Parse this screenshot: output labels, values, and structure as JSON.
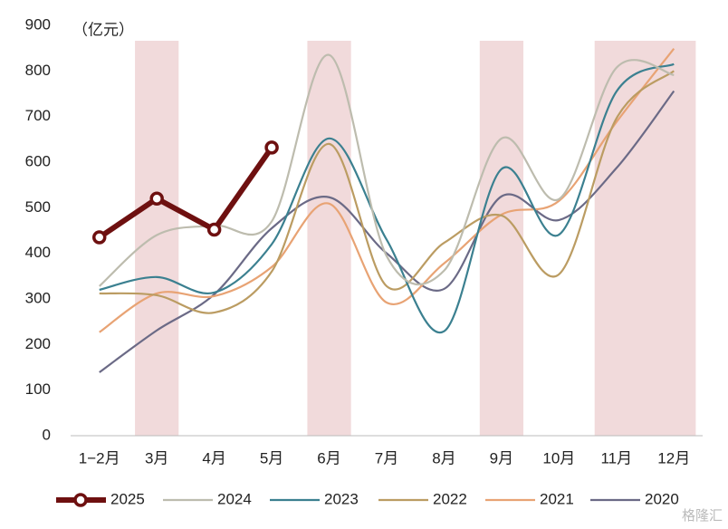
{
  "chart_data": {
    "type": "line",
    "unit_label": "（亿元）",
    "categories": [
      "1−2月",
      "3月",
      "4月",
      "5月",
      "6月",
      "7月",
      "8月",
      "9月",
      "10月",
      "11月",
      "12月"
    ],
    "series": [
      {
        "name": "2025",
        "color": "#6e1010",
        "values": [
          435,
          520,
          452,
          632,
          null,
          null,
          null,
          null,
          null,
          null,
          null
        ]
      },
      {
        "name": "2024",
        "color": "#bdbcae",
        "values": [
          328,
          440,
          461,
          470,
          835,
          394,
          362,
          652,
          519,
          807,
          791
        ]
      },
      {
        "name": "2023",
        "color": "#3b8090",
        "values": [
          320,
          348,
          314,
          420,
          652,
          430,
          229,
          585,
          441,
          755,
          815
        ]
      },
      {
        "name": "2022",
        "color": "#bb9c62",
        "values": [
          312,
          308,
          270,
          360,
          640,
          328,
          423,
          483,
          354,
          696,
          800
        ]
      },
      {
        "name": "2021",
        "color": "#e8a374",
        "values": [
          227,
          312,
          306,
          370,
          509,
          292,
          378,
          485,
          515,
          688,
          849
        ]
      },
      {
        "name": "2020",
        "color": "#6b6a86",
        "values": [
          139,
          231,
          310,
          455,
          523,
          400,
          322,
          525,
          473,
          587,
          756
        ]
      }
    ],
    "ylim": [
      0,
      900
    ],
    "yticks": [
      0,
      100,
      200,
      300,
      400,
      500,
      600,
      700,
      800,
      900
    ],
    "grid": false,
    "legend": "bottom",
    "watermark": "格隆汇"
  }
}
